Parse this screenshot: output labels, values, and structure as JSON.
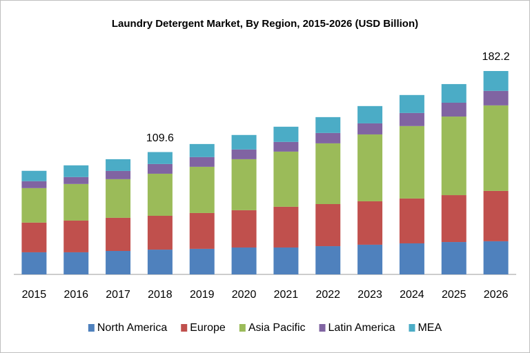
{
  "chart_data": {
    "type": "stacked_bar",
    "title": "Laundry Detergent Market, By Region, 2015-2026  (USD Billion)",
    "categories": [
      "2015",
      "2016",
      "2017",
      "2018",
      "2019",
      "2020",
      "2021",
      "2022",
      "2023",
      "2024",
      "2025",
      "2026"
    ],
    "series": [
      {
        "name": "North America",
        "color": "#4f81bd",
        "values": [
          19.8,
          19.8,
          21.0,
          22.2,
          22.9,
          24.1,
          24.1,
          25.3,
          26.6,
          27.8,
          29.0,
          29.7
        ]
      },
      {
        "name": "Europe",
        "color": "#c0504d",
        "values": [
          26.6,
          28.4,
          29.7,
          30.3,
          32.1,
          33.4,
          36.5,
          37.7,
          38.9,
          40.2,
          42.0,
          45.1
        ]
      },
      {
        "name": "Asia Pacific",
        "color": "#9bbb59",
        "values": [
          30.9,
          32.8,
          34.6,
          37.7,
          41.4,
          45.7,
          49.4,
          54.4,
          59.9,
          64.9,
          70.4,
          76.6
        ]
      },
      {
        "name": "Latin America",
        "color": "#8064a2",
        "values": [
          6.2,
          6.2,
          7.4,
          8.7,
          8.7,
          8.7,
          8.7,
          9.3,
          9.9,
          11.7,
          12.4,
          13.0
        ]
      },
      {
        "name": "MEA",
        "color": "#4bacc6",
        "values": [
          9.3,
          10.5,
          10.5,
          10.7,
          11.7,
          13.0,
          13.6,
          14.2,
          15.5,
          16.1,
          16.7,
          17.8
        ]
      }
    ],
    "annotations": [
      {
        "category": "2018",
        "value": 109.6
      },
      {
        "category": "2026",
        "value": 182.2
      }
    ]
  }
}
